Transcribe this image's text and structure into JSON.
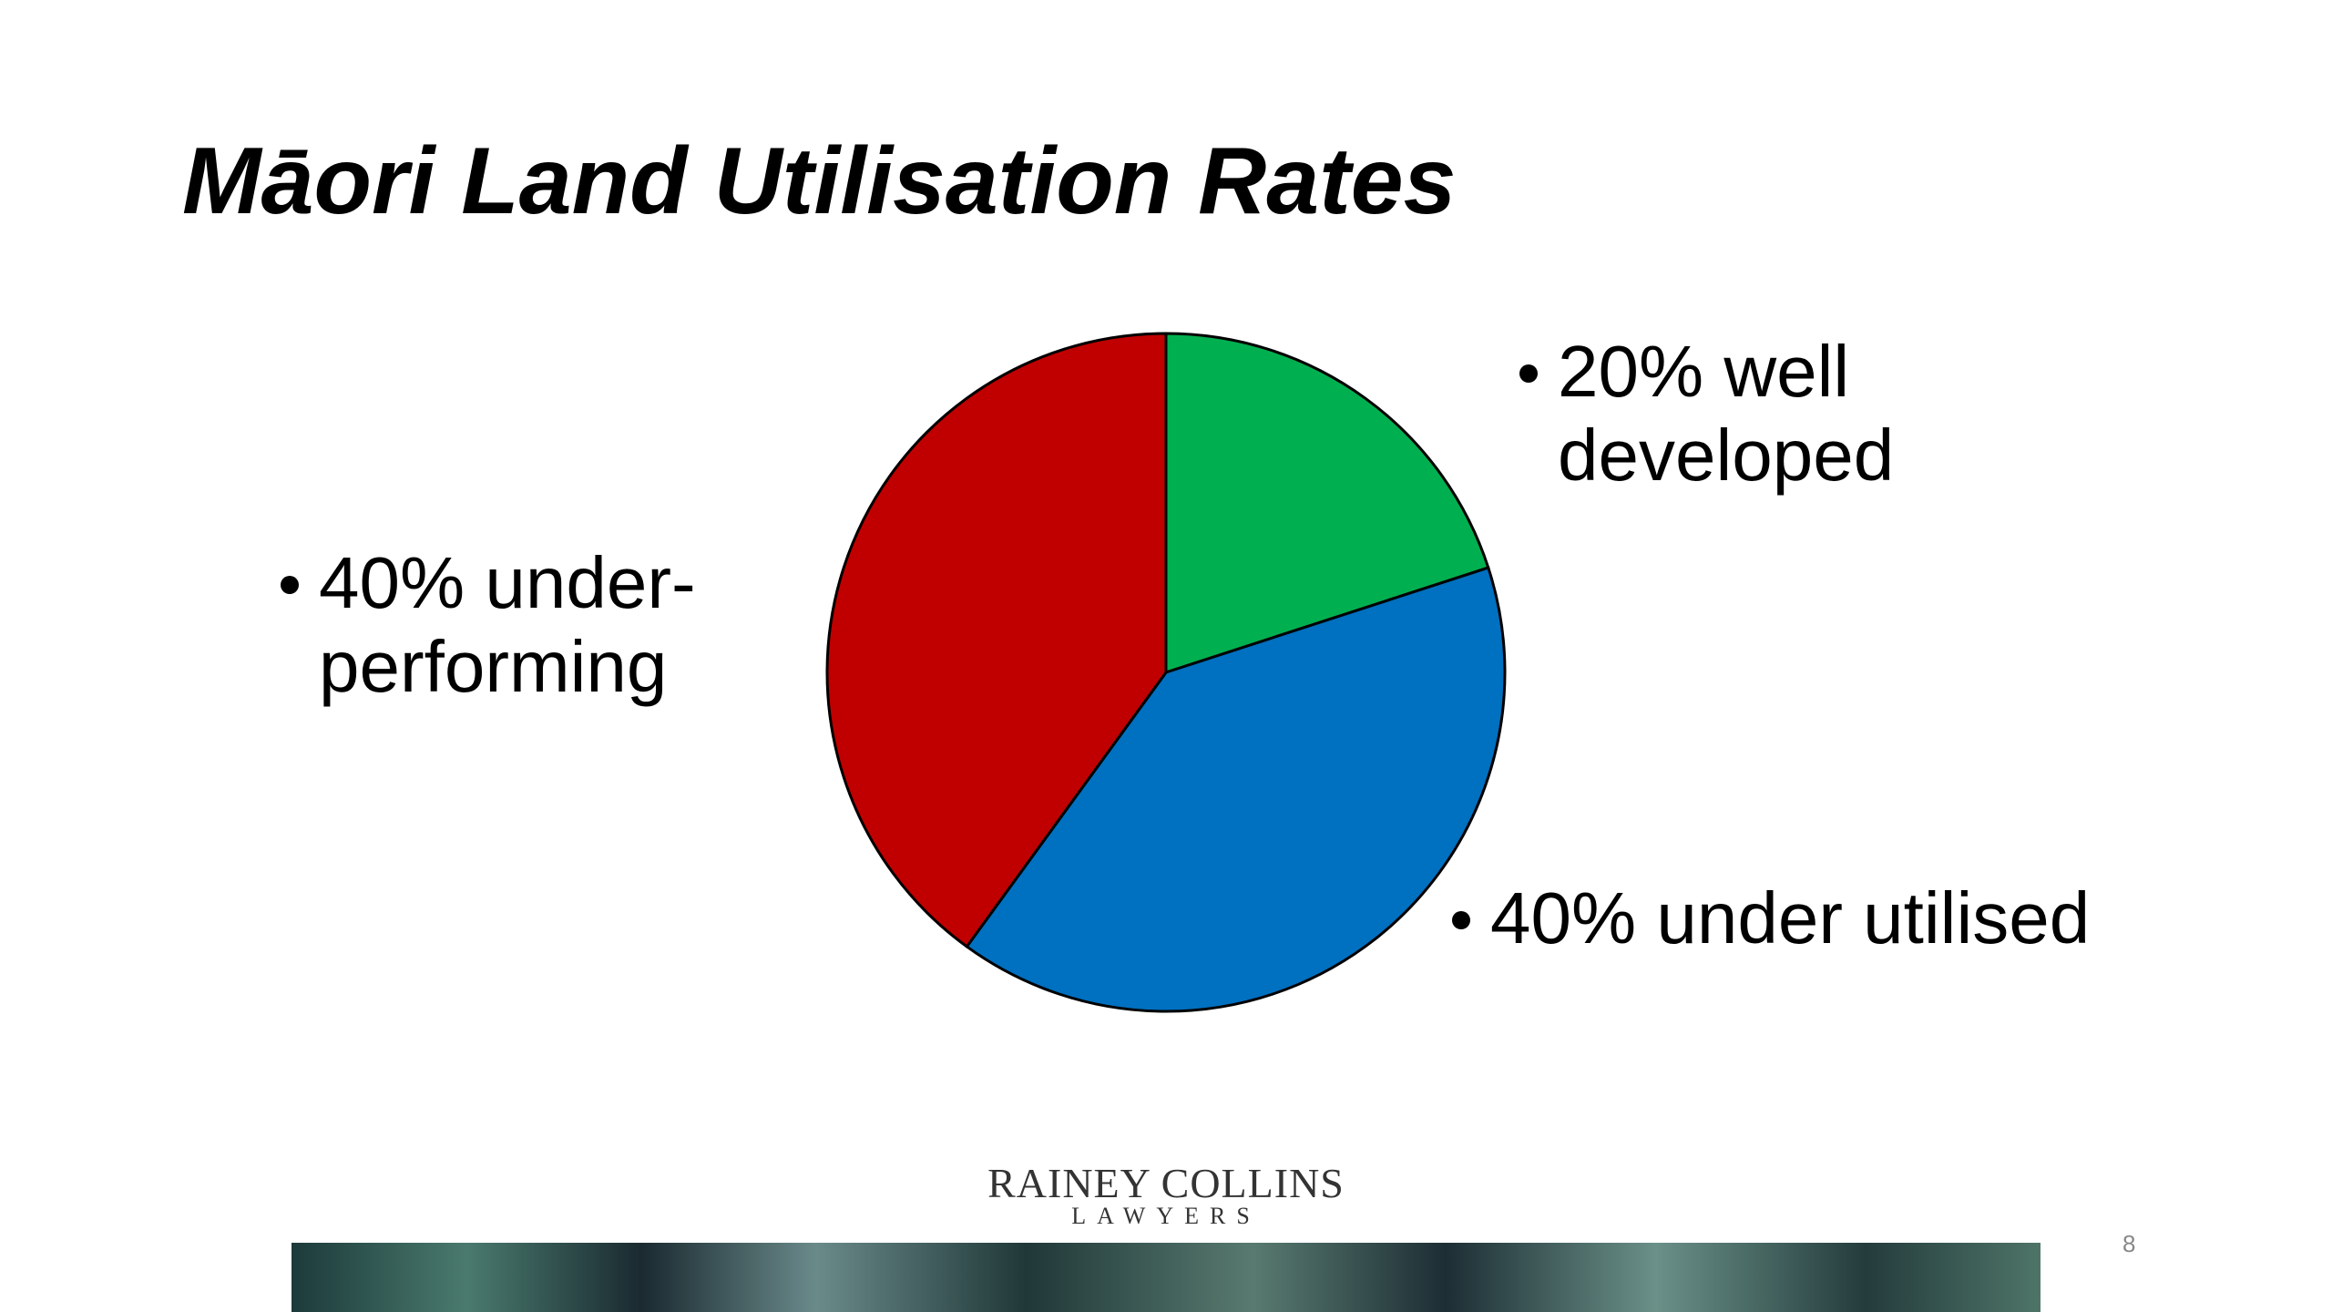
{
  "chart_data": {
    "type": "pie",
    "title": "Māori Land Utilisation Rates",
    "categories": [
      "20% well developed",
      "40% under utilised",
      "40% under-performing"
    ],
    "values": [
      20,
      40,
      40
    ],
    "colors": [
      "#00b050",
      "#0070c0",
      "#c00000"
    ]
  },
  "footer": {
    "logo_name": "RAINEY COLLINS",
    "logo_sub": "LAWYERS",
    "page_number": "8"
  }
}
